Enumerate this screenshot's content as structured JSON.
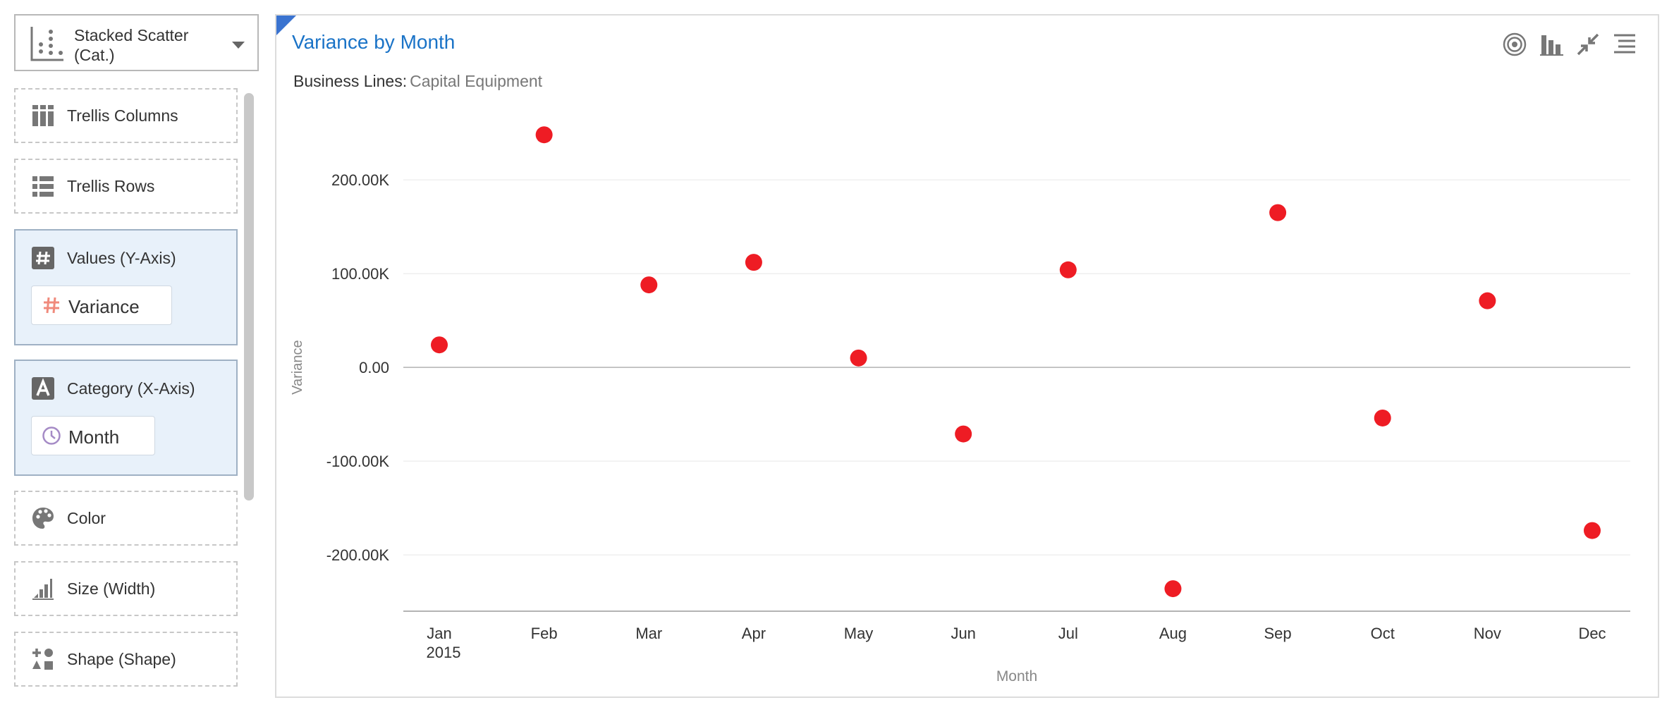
{
  "chart_type_selector": {
    "label": "Stacked Scatter (Cat.)"
  },
  "wells": {
    "trellis_columns": "Trellis Columns",
    "trellis_rows": "Trellis Rows",
    "values": {
      "label": "Values (Y-Axis)",
      "field": "Variance"
    },
    "category": {
      "label": "Category (X-Axis)",
      "field": "Month"
    },
    "color": "Color",
    "size": "Size (Width)",
    "shape": "Shape (Shape)"
  },
  "chart": {
    "title": "Variance by Month",
    "filter_label": "Business Lines:",
    "filter_value": "Capital Equipment",
    "toolbar_icons": [
      "target-icon",
      "bar-chart-icon",
      "collapse-icon",
      "menu-icon"
    ]
  },
  "chart_data": {
    "type": "scatter",
    "categories": [
      "Jan",
      "Feb",
      "Mar",
      "Apr",
      "May",
      "Jun",
      "Jul",
      "Aug",
      "Sep",
      "Oct",
      "Nov",
      "Dec"
    ],
    "category_sublabels": {
      "Jan": "2015"
    },
    "values": [
      24000,
      248000,
      88000,
      112000,
      10000,
      -71000,
      104000,
      -236000,
      165000,
      -54000,
      71000,
      -174000
    ],
    "xlabel": "Month",
    "ylabel": "Variance",
    "yticks": [
      {
        "value": 200000,
        "label": "200.00K"
      },
      {
        "value": 100000,
        "label": "100.00K"
      },
      {
        "value": 0,
        "label": "0.00"
      },
      {
        "value": -100000,
        "label": "-100.00K"
      },
      {
        "value": -200000,
        "label": "-200.00K"
      }
    ],
    "ylim": [
      -260000,
      285000
    ],
    "grid": true,
    "marker_color": "#ee1c24"
  }
}
